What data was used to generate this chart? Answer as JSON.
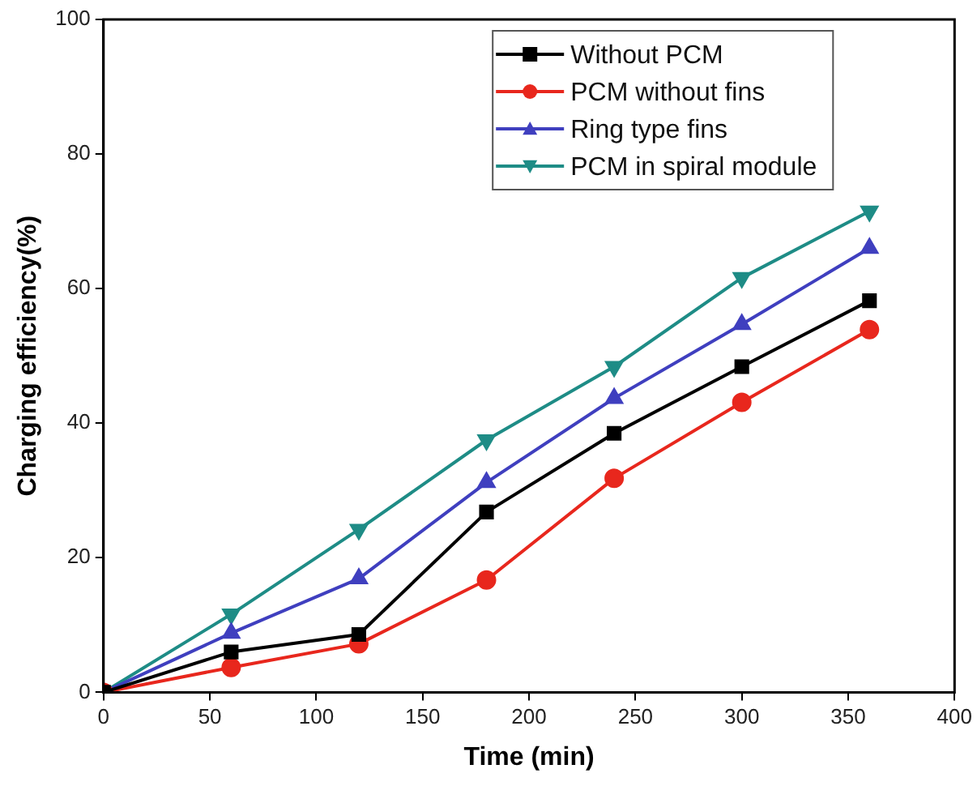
{
  "chart_data": {
    "type": "line",
    "xlabel": "Time (min)",
    "ylabel": "Charging efficiency(%)",
    "x": [
      0,
      60,
      120,
      180,
      240,
      300,
      360
    ],
    "series": [
      {
        "name": "Without PCM",
        "color": "#000000",
        "marker": "square",
        "values": [
          0,
          6.0,
          8.6,
          26.8,
          38.5,
          48.4,
          58.2
        ]
      },
      {
        "name": "PCM without fins",
        "color": "#e8271d",
        "marker": "circle",
        "values": [
          0,
          3.7,
          7.2,
          16.7,
          31.8,
          43.1,
          53.9
        ]
      },
      {
        "name": "Ring type fins",
        "color": "#3f3fbf",
        "marker": "triangle",
        "values": [
          0,
          8.8,
          16.9,
          31.2,
          43.7,
          54.7,
          66.0
        ]
      },
      {
        "name": "PCM in spiral module",
        "color": "#1e8c86",
        "marker": "triangle-down",
        "values": [
          0,
          11.6,
          24.2,
          37.5,
          48.4,
          61.6,
          71.5
        ]
      }
    ],
    "xlim": [
      0,
      400
    ],
    "xticks": [
      0,
      50,
      100,
      150,
      200,
      250,
      300,
      350,
      400
    ],
    "ylim": [
      0,
      100
    ],
    "yticks": [
      0,
      20,
      40,
      60,
      80,
      100
    ],
    "grid": false,
    "legend": "top right",
    "line_style": "solid"
  }
}
